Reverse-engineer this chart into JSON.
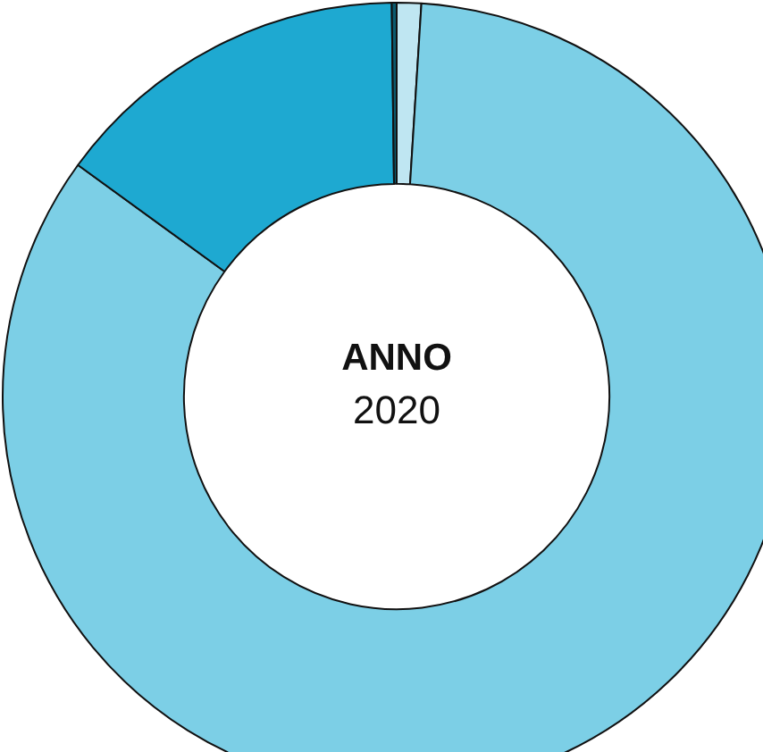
{
  "chart_data": {
    "type": "donut",
    "title": "ANNO",
    "subtitle": "2020",
    "categories": [
      null,
      null,
      null,
      null
    ],
    "values": [
      1,
      84,
      14.8,
      0.2
    ],
    "colors": [
      "#bfe6f2",
      "#7ccfe6",
      "#1ea9d1",
      "#0b5a6e"
    ],
    "legend": false
  }
}
